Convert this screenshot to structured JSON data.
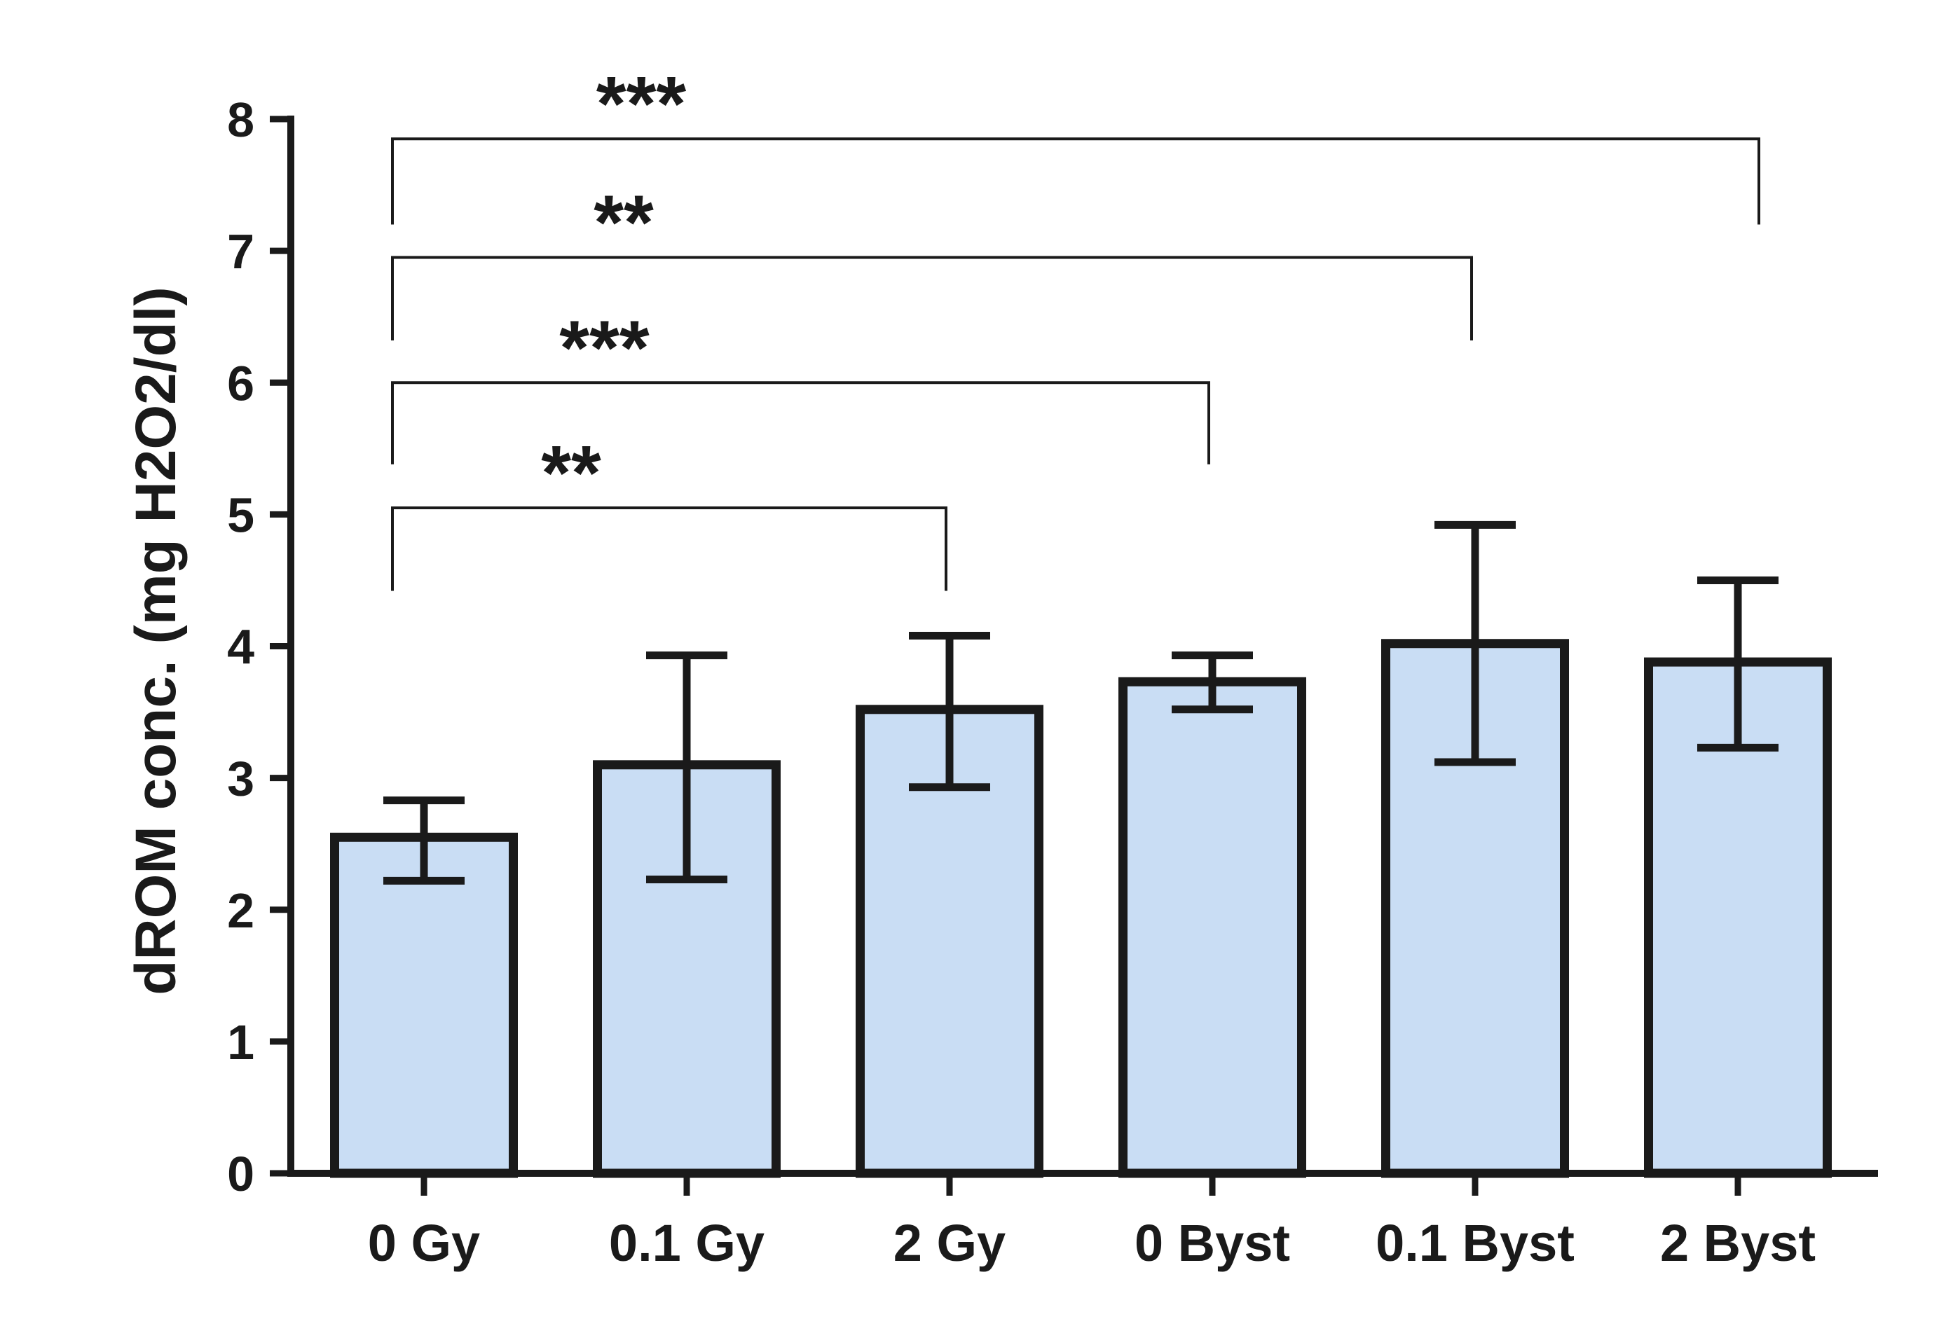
{
  "chart_data": {
    "type": "bar",
    "title": "",
    "xlabel": "",
    "ylabel": "dROM conc. (mg H2O2/dl)",
    "ylim": [
      0,
      8
    ],
    "yticks": [
      0,
      1,
      2,
      3,
      4,
      5,
      6,
      7,
      8
    ],
    "yticks_text": [
      "0",
      "1",
      "2",
      "3",
      "4",
      "5",
      "6",
      "7",
      "8"
    ],
    "categories": [
      "0 Gy",
      "0.1 Gy",
      "2 Gy",
      "0 Byst",
      "0.1 Byst",
      "2 Byst"
    ],
    "values": [
      2.55,
      3.1,
      3.52,
      3.73,
      4.02,
      3.88
    ],
    "error_low": [
      2.22,
      2.23,
      2.93,
      3.52,
      3.12,
      3.23
    ],
    "error_high": [
      2.83,
      3.93,
      4.08,
      3.93,
      4.92,
      4.5
    ],
    "bar_color": "#c9ddf4",
    "edge_color": "#1a1a1a",
    "grid": false,
    "significance": [
      {
        "from": 0,
        "to": 2,
        "label": "**",
        "y": 5.05,
        "foot_left": 4.42,
        "foot_right": 4.42
      },
      {
        "from": 0,
        "to": 3,
        "label": "***",
        "y": 6.0,
        "foot_left": 5.38,
        "foot_right": 5.38
      },
      {
        "from": 0,
        "to": 4,
        "label": "**",
        "y": 6.95,
        "foot_left": 6.32,
        "foot_right": 6.32
      },
      {
        "from": 0,
        "to": 5,
        "label": "***",
        "y": 7.85,
        "foot_left": 7.2,
        "foot_right": 7.2
      }
    ]
  }
}
